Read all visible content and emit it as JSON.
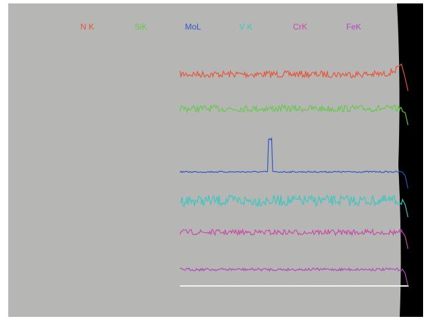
{
  "image": {
    "labels": [
      {
        "text": "N K",
        "color": "#e8553a"
      },
      {
        "text": "SiK",
        "color": "#66c94a"
      },
      {
        "text": "MoL",
        "color": "#2f55c8"
      },
      {
        "text": "V K",
        "color": "#3cc6c0"
      },
      {
        "text": "CrK",
        "color": "#c84aa8"
      },
      {
        "text": "FeK",
        "color": "#b04ab8"
      }
    ]
  }
}
